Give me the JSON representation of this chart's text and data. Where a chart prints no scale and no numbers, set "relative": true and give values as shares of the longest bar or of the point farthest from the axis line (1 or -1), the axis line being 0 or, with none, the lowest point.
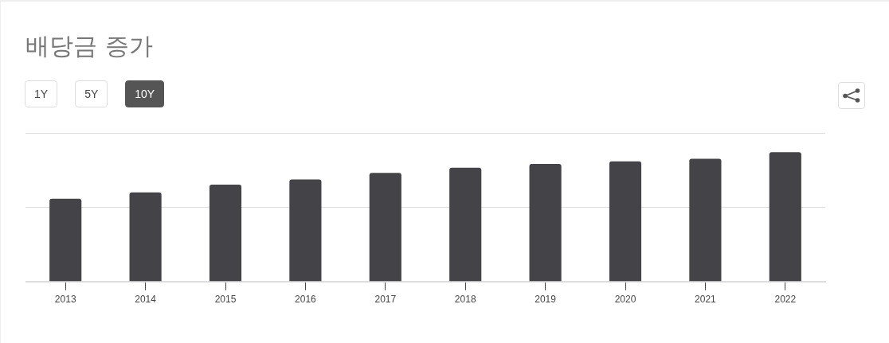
{
  "chart_data": {
    "type": "bar",
    "title": "배당금 증가",
    "categories": [
      "2013",
      "2014",
      "2015",
      "2016",
      "2017",
      "2018",
      "2019",
      "2020",
      "2021",
      "2022"
    ],
    "values": [
      0.64,
      0.69,
      0.75,
      0.79,
      0.84,
      0.88,
      0.91,
      0.93,
      0.95,
      1
    ],
    "color": "#444448",
    "relative": true,
    "ref_lines": [
      {
        "axis": "y",
        "value": 0.575,
        "color": "#dddddd"
      },
      {
        "axis": "y",
        "value": 1.15,
        "color": "#dddddd"
      }
    ],
    "annotations": [
      "1Y",
      "5Y",
      "10Y"
    ]
  }
}
